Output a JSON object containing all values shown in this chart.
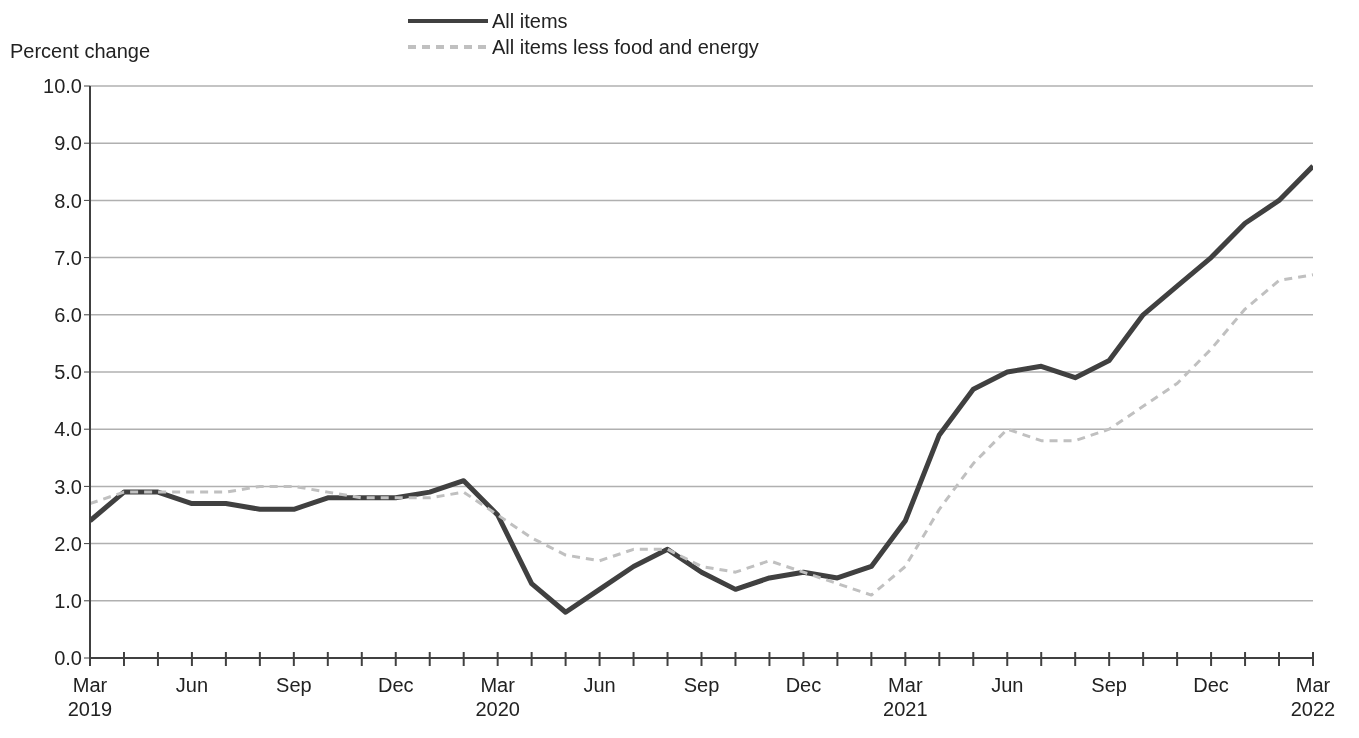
{
  "chart_data": {
    "type": "line",
    "ylabel": "Percent change",
    "categories": [
      "Mar\n2019",
      null,
      null,
      "Jun",
      null,
      null,
      "Sep",
      null,
      null,
      "Dec",
      null,
      null,
      "Mar\n2020",
      null,
      null,
      "Jun",
      null,
      null,
      "Sep",
      null,
      null,
      "Dec",
      null,
      null,
      "Mar\n2021",
      null,
      null,
      "Jun",
      null,
      null,
      "Sep",
      null,
      null,
      "Dec",
      null,
      null,
      "Mar\n2022"
    ],
    "series": [
      {
        "name": "All items",
        "color": "#404040",
        "line_style": "solid",
        "values": [
          2.4,
          2.9,
          2.9,
          2.7,
          2.7,
          2.6,
          2.6,
          2.8,
          2.8,
          2.8,
          2.9,
          3.1,
          2.5,
          1.3,
          0.8,
          1.2,
          1.6,
          1.9,
          1.5,
          1.2,
          1.4,
          1.5,
          1.4,
          1.6,
          2.4,
          3.9,
          4.7,
          5.0,
          5.1,
          4.9,
          5.2,
          6.0,
          6.5,
          7.0,
          7.6,
          8.0,
          8.6
        ]
      },
      {
        "name": "All items less food and energy",
        "color": "#c0c0c0",
        "line_style": "dashed",
        "values": [
          2.7,
          2.9,
          2.9,
          2.9,
          2.9,
          3.0,
          3.0,
          2.9,
          2.8,
          2.8,
          2.8,
          2.9,
          2.5,
          2.1,
          1.8,
          1.7,
          1.9,
          1.9,
          1.6,
          1.5,
          1.7,
          1.5,
          1.3,
          1.1,
          1.6,
          2.6,
          3.4,
          4.0,
          3.8,
          3.8,
          4.0,
          4.4,
          4.8,
          5.4,
          6.1,
          6.6,
          6.7
        ]
      }
    ],
    "ylim": [
      0,
      10
    ],
    "yticks": [
      {
        "value": 0,
        "label": "0.0"
      },
      {
        "value": 1,
        "label": "1.0"
      },
      {
        "value": 2,
        "label": "2.0"
      },
      {
        "value": 3,
        "label": "3.0"
      },
      {
        "value": 4,
        "label": "4.0"
      },
      {
        "value": 5,
        "label": "5.0"
      },
      {
        "value": 6,
        "label": "6.0"
      },
      {
        "value": 7,
        "label": "7.0"
      },
      {
        "value": 8,
        "label": "8.0"
      },
      {
        "value": 9,
        "label": "9.0"
      },
      {
        "value": 10,
        "label": "10.0"
      }
    ],
    "grid": "y",
    "legend": "top",
    "marker": "none"
  }
}
